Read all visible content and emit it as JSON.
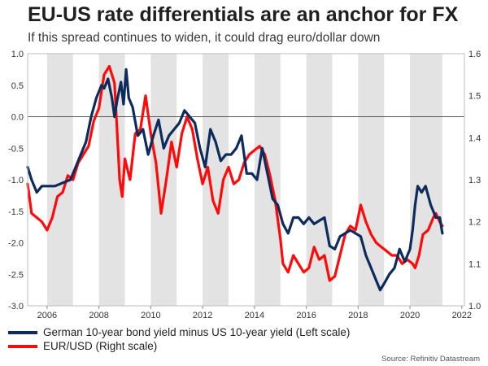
{
  "header": {
    "title": "EU-US rate differentials are an anchor for FX",
    "subtitle": "If this spread continues to widen, it could drag euro/dollar down"
  },
  "footer": {
    "source": "Source: Refinitiv Datastream"
  },
  "colors": {
    "spread": "#0d2b5c",
    "eurusd": "#ff0a0a",
    "shade": "#e3e3e3",
    "zero_line": "#555555"
  },
  "chart_data": {
    "type": "line",
    "title": "EU-US rate differentials are an anchor for FX",
    "subtitle": "If this spread continues to widen, it could drag euro/dollar down",
    "x_range": [
      2005.25,
      2022.1
    ],
    "x_ticks": [
      2006,
      2008,
      2010,
      2012,
      2014,
      2016,
      2018,
      2020,
      2022
    ],
    "x_tick_labels": [
      "2006",
      "2008",
      "2010",
      "2012",
      "2014",
      "2016",
      "2018",
      "2020",
      "2022"
    ],
    "left_axis": {
      "range": [
        -3.0,
        1.0
      ],
      "ticks": [
        -3.0,
        -2.5,
        -2.0,
        -1.5,
        -1.0,
        -0.5,
        0.0,
        0.5,
        1.0
      ],
      "tick_labels": [
        "-3.0",
        "-2.5",
        "-2.0",
        "-1.5",
        "-1.0",
        "-0.5",
        "0.0",
        "0.5",
        "1.0"
      ]
    },
    "right_axis": {
      "range": [
        1.0,
        1.6
      ],
      "ticks": [
        1.0,
        1.1,
        1.2,
        1.3,
        1.4,
        1.5,
        1.6
      ],
      "tick_labels": [
        "1.0",
        "1.1",
        "1.2",
        "1.3",
        "1.4",
        "1.5",
        "1.6"
      ]
    },
    "shaded_year_bands": [
      [
        2006,
        2007
      ],
      [
        2008,
        2009
      ],
      [
        2010,
        2011
      ],
      [
        2012,
        2013
      ],
      [
        2014,
        2015
      ],
      [
        2016,
        2017
      ],
      [
        2018,
        2019
      ],
      [
        2020,
        2021.25
      ]
    ],
    "series": [
      {
        "name": "German 10-year bond yield minus US 10-year yield (Left scale)",
        "axis": "left",
        "color": "#0d2b5c",
        "points": [
          [
            2005.25,
            -0.8
          ],
          [
            2005.4,
            -1.0
          ],
          [
            2005.6,
            -1.2
          ],
          [
            2005.8,
            -1.1
          ],
          [
            2006.0,
            -1.1
          ],
          [
            2006.3,
            -1.1
          ],
          [
            2006.6,
            -1.05
          ],
          [
            2006.9,
            -1.0
          ],
          [
            2007.1,
            -0.8
          ],
          [
            2007.3,
            -0.6
          ],
          [
            2007.5,
            -0.4
          ],
          [
            2007.7,
            0.0
          ],
          [
            2007.9,
            0.3
          ],
          [
            2008.1,
            0.5
          ],
          [
            2008.2,
            0.45
          ],
          [
            2008.35,
            0.6
          ],
          [
            2008.5,
            0.3
          ],
          [
            2008.6,
            0.0
          ],
          [
            2008.7,
            0.25
          ],
          [
            2008.85,
            0.55
          ],
          [
            2008.95,
            0.2
          ],
          [
            2009.05,
            0.75
          ],
          [
            2009.15,
            0.3
          ],
          [
            2009.3,
            0.15
          ],
          [
            2009.5,
            -0.3
          ],
          [
            2009.7,
            -0.2
          ],
          [
            2009.9,
            -0.6
          ],
          [
            2010.1,
            -0.3
          ],
          [
            2010.3,
            -0.05
          ],
          [
            2010.5,
            -0.5
          ],
          [
            2010.7,
            -0.3
          ],
          [
            2010.9,
            -0.2
          ],
          [
            2011.1,
            -0.1
          ],
          [
            2011.3,
            0.1
          ],
          [
            2011.5,
            0.0
          ],
          [
            2011.7,
            -0.1
          ],
          [
            2011.9,
            -0.5
          ],
          [
            2012.1,
            -0.8
          ],
          [
            2012.3,
            -0.2
          ],
          [
            2012.5,
            -0.4
          ],
          [
            2012.7,
            -0.7
          ],
          [
            2012.9,
            -0.6
          ],
          [
            2013.1,
            -0.6
          ],
          [
            2013.3,
            -0.5
          ],
          [
            2013.5,
            -0.3
          ],
          [
            2013.7,
            -0.9
          ],
          [
            2013.9,
            -0.9
          ],
          [
            2014.1,
            -1.0
          ],
          [
            2014.3,
            -0.5
          ],
          [
            2014.5,
            -0.9
          ],
          [
            2014.7,
            -1.3
          ],
          [
            2014.9,
            -1.4
          ],
          [
            2015.1,
            -1.7
          ],
          [
            2015.3,
            -1.85
          ],
          [
            2015.5,
            -1.6
          ],
          [
            2015.7,
            -1.6
          ],
          [
            2015.9,
            -1.7
          ],
          [
            2016.1,
            -1.6
          ],
          [
            2016.3,
            -1.7
          ],
          [
            2016.5,
            -1.65
          ],
          [
            2016.7,
            -1.6
          ],
          [
            2016.9,
            -2.05
          ],
          [
            2017.1,
            -2.1
          ],
          [
            2017.3,
            -1.9
          ],
          [
            2017.5,
            -1.85
          ],
          [
            2017.7,
            -1.8
          ],
          [
            2017.9,
            -1.85
          ],
          [
            2018.1,
            -1.9
          ],
          [
            2018.3,
            -2.2
          ],
          [
            2018.5,
            -2.4
          ],
          [
            2018.7,
            -2.6
          ],
          [
            2018.85,
            -2.75
          ],
          [
            2019.0,
            -2.65
          ],
          [
            2019.2,
            -2.5
          ],
          [
            2019.4,
            -2.4
          ],
          [
            2019.6,
            -2.1
          ],
          [
            2019.8,
            -2.3
          ],
          [
            2020.0,
            -2.1
          ],
          [
            2020.1,
            -1.8
          ],
          [
            2020.2,
            -1.4
          ],
          [
            2020.3,
            -1.1
          ],
          [
            2020.45,
            -1.2
          ],
          [
            2020.6,
            -1.1
          ],
          [
            2020.8,
            -1.4
          ],
          [
            2021.0,
            -1.6
          ],
          [
            2021.15,
            -1.6
          ],
          [
            2021.25,
            -1.85
          ]
        ]
      },
      {
        "name": "EUR/USD (Right scale)",
        "axis": "right",
        "color": "#ff0a0a",
        "points": [
          [
            2005.25,
            1.29
          ],
          [
            2005.4,
            1.22
          ],
          [
            2005.6,
            1.21
          ],
          [
            2005.8,
            1.2
          ],
          [
            2006.0,
            1.18
          ],
          [
            2006.2,
            1.21
          ],
          [
            2006.4,
            1.26
          ],
          [
            2006.6,
            1.27
          ],
          [
            2006.8,
            1.31
          ],
          [
            2007.0,
            1.3
          ],
          [
            2007.2,
            1.34
          ],
          [
            2007.4,
            1.36
          ],
          [
            2007.6,
            1.38
          ],
          [
            2007.8,
            1.44
          ],
          [
            2008.0,
            1.47
          ],
          [
            2008.2,
            1.55
          ],
          [
            2008.4,
            1.57
          ],
          [
            2008.6,
            1.53
          ],
          [
            2008.7,
            1.42
          ],
          [
            2008.8,
            1.3
          ],
          [
            2008.9,
            1.26
          ],
          [
            2009.0,
            1.35
          ],
          [
            2009.2,
            1.3
          ],
          [
            2009.4,
            1.41
          ],
          [
            2009.6,
            1.42
          ],
          [
            2009.8,
            1.5
          ],
          [
            2010.0,
            1.41
          ],
          [
            2010.2,
            1.34
          ],
          [
            2010.4,
            1.22
          ],
          [
            2010.6,
            1.3
          ],
          [
            2010.8,
            1.39
          ],
          [
            2011.0,
            1.33
          ],
          [
            2011.2,
            1.41
          ],
          [
            2011.4,
            1.45
          ],
          [
            2011.6,
            1.42
          ],
          [
            2011.8,
            1.35
          ],
          [
            2012.0,
            1.29
          ],
          [
            2012.2,
            1.33
          ],
          [
            2012.4,
            1.25
          ],
          [
            2012.6,
            1.22
          ],
          [
            2012.8,
            1.3
          ],
          [
            2013.0,
            1.33
          ],
          [
            2013.2,
            1.29
          ],
          [
            2013.4,
            1.3
          ],
          [
            2013.6,
            1.34
          ],
          [
            2013.8,
            1.36
          ],
          [
            2014.0,
            1.37
          ],
          [
            2014.2,
            1.38
          ],
          [
            2014.4,
            1.36
          ],
          [
            2014.6,
            1.31
          ],
          [
            2014.8,
            1.25
          ],
          [
            2015.0,
            1.16
          ],
          [
            2015.1,
            1.1
          ],
          [
            2015.3,
            1.08
          ],
          [
            2015.5,
            1.12
          ],
          [
            2015.7,
            1.1
          ],
          [
            2015.9,
            1.08
          ],
          [
            2016.1,
            1.09
          ],
          [
            2016.3,
            1.14
          ],
          [
            2016.5,
            1.11
          ],
          [
            2016.7,
            1.12
          ],
          [
            2016.9,
            1.06
          ],
          [
            2017.1,
            1.07
          ],
          [
            2017.3,
            1.12
          ],
          [
            2017.5,
            1.17
          ],
          [
            2017.7,
            1.19
          ],
          [
            2017.9,
            1.18
          ],
          [
            2018.1,
            1.24
          ],
          [
            2018.3,
            1.2
          ],
          [
            2018.5,
            1.17
          ],
          [
            2018.7,
            1.15
          ],
          [
            2018.9,
            1.14
          ],
          [
            2019.1,
            1.13
          ],
          [
            2019.3,
            1.12
          ],
          [
            2019.5,
            1.12
          ],
          [
            2019.7,
            1.1
          ],
          [
            2019.9,
            1.11
          ],
          [
            2020.1,
            1.1
          ],
          [
            2020.2,
            1.09
          ],
          [
            2020.35,
            1.12
          ],
          [
            2020.5,
            1.17
          ],
          [
            2020.7,
            1.18
          ],
          [
            2020.9,
            1.21
          ],
          [
            2021.0,
            1.22
          ],
          [
            2021.15,
            1.2
          ],
          [
            2021.25,
            1.19
          ]
        ]
      }
    ]
  }
}
